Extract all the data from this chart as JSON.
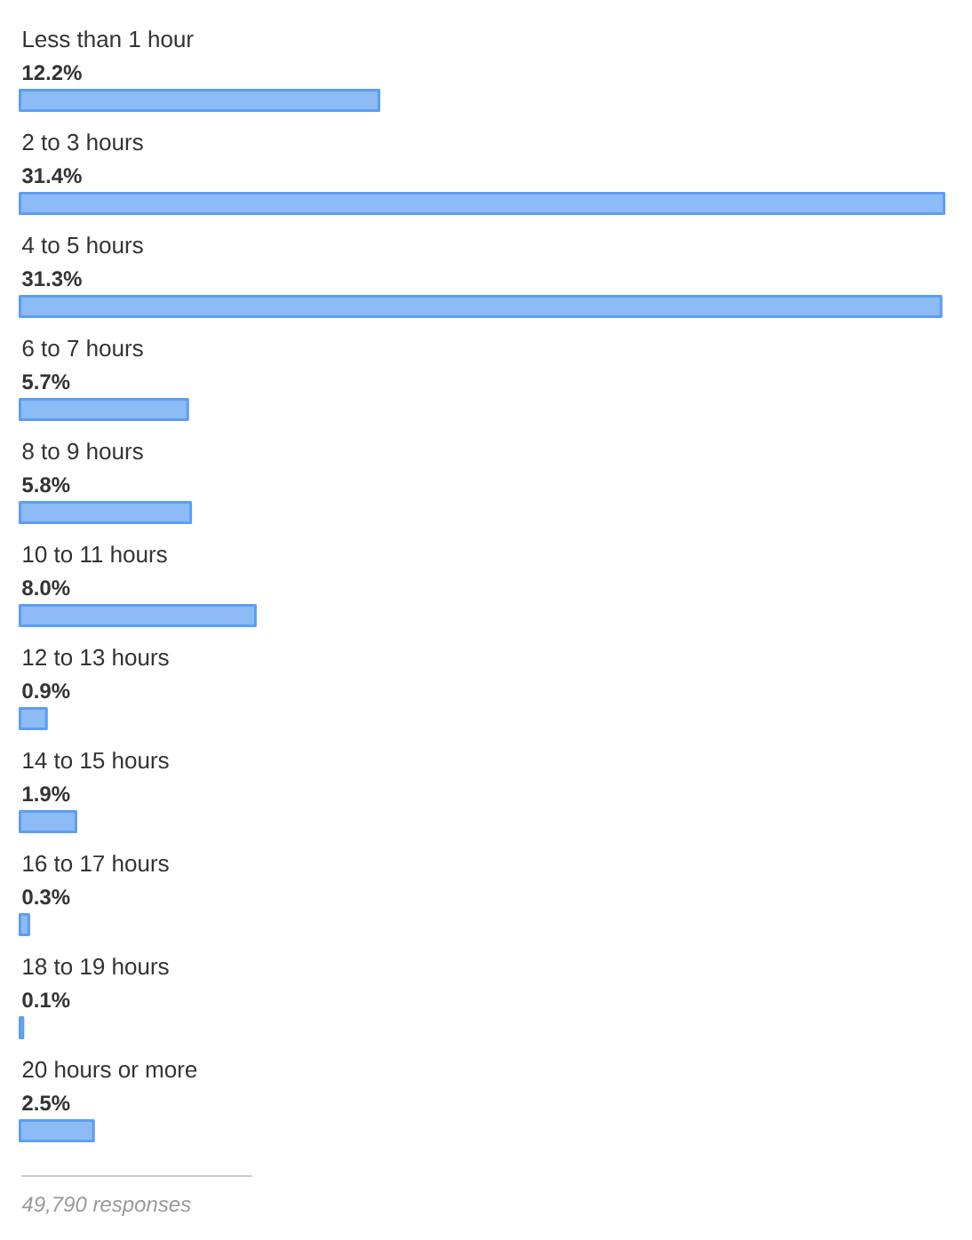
{
  "chart_data": {
    "type": "bar",
    "orientation": "horizontal",
    "categories": [
      "Less than 1 hour",
      "2 to 3 hours",
      "4 to 5 hours",
      "6 to 7 hours",
      "8 to 9 hours",
      "10 to 11 hours",
      "12 to 13 hours",
      "14 to 15 hours",
      "16 to 17 hours",
      "18 to 19 hours",
      "20 hours or more"
    ],
    "values": [
      12.2,
      31.4,
      31.3,
      5.7,
      5.8,
      8.0,
      0.9,
      1.9,
      0.3,
      0.1,
      2.5
    ],
    "value_labels": [
      "12.2%",
      "31.4%",
      "31.3%",
      "5.7%",
      "5.8%",
      "8.0%",
      "0.9%",
      "1.9%",
      "0.3%",
      "0.1%",
      "2.5%"
    ],
    "color": "#8cbbf6",
    "annotations": [
      "49,790 responses"
    ]
  }
}
